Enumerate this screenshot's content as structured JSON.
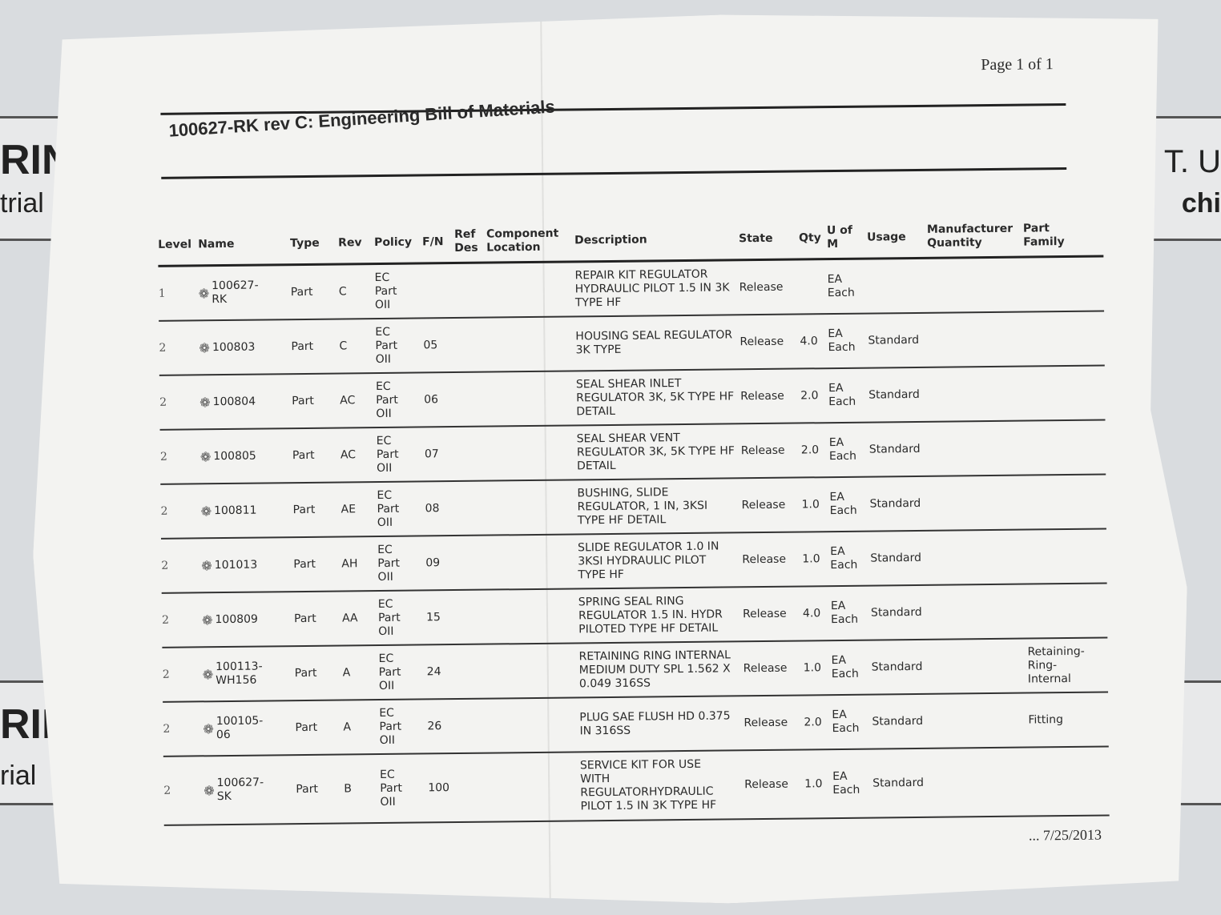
{
  "background": {
    "left_top": "RIN",
    "left_top2": "trial",
    "right_top": "T. U",
    "right_top2": "chi",
    "left_bottom": "RIN",
    "left_bottom2": "rial"
  },
  "page_label": "Page 1 of 1",
  "title": "100627-RK rev C: Engineering Bill of Materials",
  "columns": [
    "Level",
    "Name",
    "Type",
    "Rev",
    "Policy",
    "F/N",
    "Ref\nDes",
    "Component\nLocation",
    "Description",
    "State",
    "Qty",
    "U of\nM",
    "Usage",
    "Manufacturer\nQuantity",
    "Part\nFamily"
  ],
  "rows": [
    {
      "level": "1",
      "name": "100627-\nRK",
      "type": "Part",
      "rev": "C",
      "policy": "EC\nPart\nOII",
      "fn": "",
      "refdes": "",
      "loc": "",
      "desc": "REPAIR KIT REGULATOR\nHYDRAULIC PILOT 1.5 IN 3K\nTYPE HF",
      "state": "Release",
      "qty": "",
      "uom": "EA\nEach",
      "usage": "",
      "mfq": "",
      "family": ""
    },
    {
      "level": "2",
      "name": "100803",
      "type": "Part",
      "rev": "C",
      "policy": "EC\nPart\nOII",
      "fn": "05",
      "refdes": "",
      "loc": "",
      "desc": "HOUSING SEAL REGULATOR\n3K TYPE",
      "state": "Release",
      "qty": "4.0",
      "uom": "EA\nEach",
      "usage": "Standard",
      "mfq": "",
      "family": ""
    },
    {
      "level": "2",
      "name": "100804",
      "type": "Part",
      "rev": "AC",
      "policy": "EC\nPart\nOII",
      "fn": "06",
      "refdes": "",
      "loc": "",
      "desc": "SEAL SHEAR INLET\nREGULATOR 3K, 5K TYPE HF\nDETAIL",
      "state": "Release",
      "qty": "2.0",
      "uom": "EA\nEach",
      "usage": "Standard",
      "mfq": "",
      "family": ""
    },
    {
      "level": "2",
      "name": "100805",
      "type": "Part",
      "rev": "AC",
      "policy": "EC\nPart\nOII",
      "fn": "07",
      "refdes": "",
      "loc": "",
      "desc": "SEAL SHEAR VENT\nREGULATOR 3K, 5K TYPE HF\nDETAIL",
      "state": "Release",
      "qty": "2.0",
      "uom": "EA\nEach",
      "usage": "Standard",
      "mfq": "",
      "family": ""
    },
    {
      "level": "2",
      "name": "100811",
      "type": "Part",
      "rev": "AE",
      "policy": "EC\nPart\nOII",
      "fn": "08",
      "refdes": "",
      "loc": "",
      "desc": "BUSHING, SLIDE\nREGULATOR, 1 IN, 3KSI\nTYPE HF DETAIL",
      "state": "Release",
      "qty": "1.0",
      "uom": "EA\nEach",
      "usage": "Standard",
      "mfq": "",
      "family": ""
    },
    {
      "level": "2",
      "name": "101013",
      "type": "Part",
      "rev": "AH",
      "policy": "EC\nPart\nOII",
      "fn": "09",
      "refdes": "",
      "loc": "",
      "desc": "SLIDE REGULATOR 1.0 IN\n3KSI HYDRAULIC PILOT\nTYPE HF",
      "state": "Release",
      "qty": "1.0",
      "uom": "EA\nEach",
      "usage": "Standard",
      "mfq": "",
      "family": ""
    },
    {
      "level": "2",
      "name": "100809",
      "type": "Part",
      "rev": "AA",
      "policy": "EC\nPart\nOII",
      "fn": "15",
      "refdes": "",
      "loc": "",
      "desc": "SPRING SEAL RING\nREGULATOR 1.5 IN. HYDR\nPILOTED TYPE HF DETAIL",
      "state": "Release",
      "qty": "4.0",
      "uom": "EA\nEach",
      "usage": "Standard",
      "mfq": "",
      "family": ""
    },
    {
      "level": "2",
      "name": "100113-\nWH156",
      "type": "Part",
      "rev": "A",
      "policy": "EC\nPart\nOII",
      "fn": "24",
      "refdes": "",
      "loc": "",
      "desc": "RETAINING RING INTERNAL\nMEDIUM DUTY SPL 1.562 X\n0.049 316SS",
      "state": "Release",
      "qty": "1.0",
      "uom": "EA\nEach",
      "usage": "Standard",
      "mfq": "",
      "family": "Retaining-\nRing-\nInternal"
    },
    {
      "level": "2",
      "name": "100105-\n06",
      "type": "Part",
      "rev": "A",
      "policy": "EC\nPart\nOII",
      "fn": "26",
      "refdes": "",
      "loc": "",
      "desc": "PLUG SAE FLUSH HD 0.375\nIN 316SS",
      "state": "Release",
      "qty": "2.0",
      "uom": "EA\nEach",
      "usage": "Standard",
      "mfq": "",
      "family": "Fitting"
    },
    {
      "level": "2",
      "name": "100627-\nSK",
      "type": "Part",
      "rev": "B",
      "policy": "EC\nPart\nOII",
      "fn": "100",
      "refdes": "",
      "loc": "",
      "desc": "SERVICE KIT FOR USE\nWITH\nREGULATORHYDRAULIC\nPILOT 1.5 IN 3K TYPE HF",
      "state": "Release",
      "qty": "1.0",
      "uom": "EA\nEach",
      "usage": "Standard",
      "mfq": "",
      "family": ""
    }
  ],
  "footer_date": "... 7/25/2013",
  "icons": {
    "part_icon": "assembly-part-icon"
  }
}
